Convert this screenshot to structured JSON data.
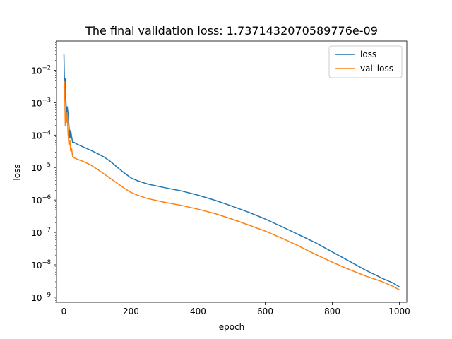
{
  "chart_data": {
    "type": "line",
    "title": "The final validation loss: 1.7371432070589776e-09",
    "xlabel": "epoch",
    "ylabel": "loss",
    "yscale": "log",
    "xlim": [
      -22,
      1022
    ],
    "ylim": [
      7e-10,
      0.08
    ],
    "grid": false,
    "legend_position": "top-right",
    "x_ticks": [
      {
        "value": 0,
        "label": "0"
      },
      {
        "value": 200,
        "label": "200"
      },
      {
        "value": 400,
        "label": "400"
      },
      {
        "value": 600,
        "label": "600"
      },
      {
        "value": 800,
        "label": "800"
      },
      {
        "value": 1000,
        "label": "1000"
      }
    ],
    "y_ticks": [
      {
        "value": 1e-09,
        "base": "10",
        "exp": "−9"
      },
      {
        "value": 1e-08,
        "base": "10",
        "exp": "−8"
      },
      {
        "value": 1e-07,
        "base": "10",
        "exp": "−7"
      },
      {
        "value": 1e-06,
        "base": "10",
        "exp": "−6"
      },
      {
        "value": 1e-05,
        "base": "10",
        "exp": "−5"
      },
      {
        "value": 0.0001,
        "base": "10",
        "exp": "−4"
      },
      {
        "value": 0.001,
        "base": "10",
        "exp": "−3"
      },
      {
        "value": 0.01,
        "base": "10",
        "exp": "−2"
      }
    ],
    "series": [
      {
        "name": "loss",
        "color": "#1f77b4",
        "points": [
          [
            0,
            0.032
          ],
          [
            2,
            0.003
          ],
          [
            4,
            0.0055
          ],
          [
            6,
            0.0012
          ],
          [
            8,
            0.0004
          ],
          [
            10,
            0.00075
          ],
          [
            12,
            0.0005
          ],
          [
            15,
            0.0002
          ],
          [
            18,
            8e-05
          ],
          [
            20,
            0.00014
          ],
          [
            23,
            9e-05
          ],
          [
            26,
            6e-05
          ],
          [
            30,
            6e-05
          ],
          [
            40,
            5.2e-05
          ],
          [
            60,
            4.2e-05
          ],
          [
            80,
            3.4e-05
          ],
          [
            100,
            2.7e-05
          ],
          [
            120,
            2.1e-05
          ],
          [
            140,
            1.5e-05
          ],
          [
            160,
            1e-05
          ],
          [
            180,
            6.8e-06
          ],
          [
            200,
            4.8e-06
          ],
          [
            220,
            3.9e-06
          ],
          [
            250,
            3.1e-06
          ],
          [
            300,
            2.4e-06
          ],
          [
            350,
            1.9e-06
          ],
          [
            400,
            1.4e-06
          ],
          [
            450,
            9.8e-07
          ],
          [
            500,
            6.5e-07
          ],
          [
            550,
            4.2e-07
          ],
          [
            600,
            2.6e-07
          ],
          [
            650,
            1.5e-07
          ],
          [
            700,
            8.5e-08
          ],
          [
            750,
            4.8e-08
          ],
          [
            800,
            2.5e-08
          ],
          [
            850,
            1.3e-08
          ],
          [
            900,
            6.8e-09
          ],
          [
            950,
            3.8e-09
          ],
          [
            980,
            2.8e-09
          ],
          [
            1000,
            2.1e-09
          ]
        ]
      },
      {
        "name": "val_loss",
        "color": "#ff7f0e",
        "points": [
          [
            0,
            0.0028
          ],
          [
            2,
            0.0045
          ],
          [
            4,
            0.0002
          ],
          [
            6,
            0.00045
          ],
          [
            8,
            0.00025
          ],
          [
            10,
            0.0005
          ],
          [
            12,
            0.00012
          ],
          [
            15,
            5e-05
          ],
          [
            18,
            7e-05
          ],
          [
            20,
            3.2e-05
          ],
          [
            23,
            3.8e-05
          ],
          [
            26,
            2.2e-05
          ],
          [
            30,
            2e-05
          ],
          [
            40,
            1.8e-05
          ],
          [
            60,
            1.5e-05
          ],
          [
            80,
            1.2e-05
          ],
          [
            100,
            8.8e-06
          ],
          [
            120,
            6.3e-06
          ],
          [
            140,
            4.5e-06
          ],
          [
            160,
            3.2e-06
          ],
          [
            180,
            2.3e-06
          ],
          [
            200,
            1.7e-06
          ],
          [
            220,
            1.4e-06
          ],
          [
            250,
            1.1e-06
          ],
          [
            300,
            8.5e-07
          ],
          [
            350,
            6.8e-07
          ],
          [
            400,
            5.2e-07
          ],
          [
            450,
            3.8e-07
          ],
          [
            500,
            2.6e-07
          ],
          [
            550,
            1.7e-07
          ],
          [
            600,
            1.1e-07
          ],
          [
            650,
            6.6e-08
          ],
          [
            700,
            3.8e-08
          ],
          [
            750,
            2.1e-08
          ],
          [
            800,
            1.2e-08
          ],
          [
            850,
            7.2e-09
          ],
          [
            900,
            4.5e-09
          ],
          [
            950,
            3e-09
          ],
          [
            980,
            2.2e-09
          ],
          [
            1000,
            1.7e-09
          ]
        ]
      }
    ]
  }
}
